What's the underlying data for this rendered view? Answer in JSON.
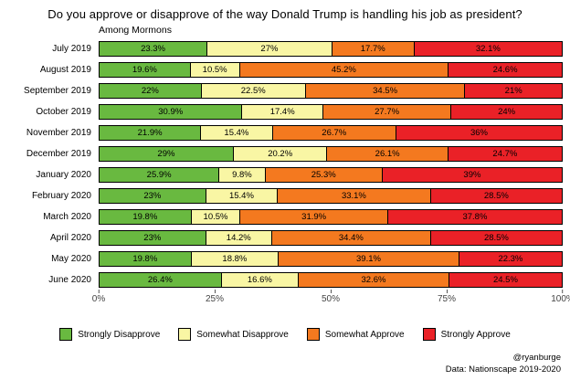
{
  "chart_data": {
    "type": "bar",
    "orientation": "horizontal-stacked",
    "title": "Do you approve or disapprove of the way Donald Trump is handling his job as president?",
    "subtitle": "Among Mormons",
    "categories": [
      "July 2019",
      "August 2019",
      "September 2019",
      "October 2019",
      "November 2019",
      "December 2019",
      "January 2020",
      "February 2020",
      "March 2020",
      "April 2020",
      "May 2020",
      "June 2020"
    ],
    "series": [
      {
        "name": "Strongly Disapprove",
        "color": "#69b940",
        "values": [
          23.3,
          19.6,
          22,
          30.9,
          21.9,
          29,
          25.9,
          23,
          19.8,
          23,
          19.8,
          26.4
        ],
        "labels": [
          "23.3%",
          "19.6%",
          "22%",
          "30.9%",
          "21.9%",
          "29%",
          "25.9%",
          "23%",
          "19.8%",
          "23%",
          "19.8%",
          "26.4%"
        ]
      },
      {
        "name": "Somewhat Disapprove",
        "color": "#f9f6a4",
        "values": [
          27,
          10.5,
          22.5,
          17.4,
          15.4,
          20.2,
          9.8,
          15.4,
          10.5,
          14.2,
          18.8,
          16.6
        ],
        "labels": [
          "27%",
          "10.5%",
          "22.5%",
          "17.4%",
          "15.4%",
          "20.2%",
          "9.8%",
          "15.4%",
          "10.5%",
          "14.2%",
          "18.8%",
          "16.6%"
        ]
      },
      {
        "name": "Somewhat Approve",
        "color": "#f4791f",
        "values": [
          17.7,
          45.2,
          34.5,
          27.7,
          26.7,
          26.1,
          25.3,
          33.1,
          31.9,
          34.4,
          39.1,
          32.6
        ],
        "labels": [
          "17.7%",
          "45.2%",
          "34.5%",
          "27.7%",
          "26.7%",
          "26.1%",
          "25.3%",
          "33.1%",
          "31.9%",
          "34.4%",
          "39.1%",
          "32.6%"
        ]
      },
      {
        "name": "Strongly Approve",
        "color": "#ea2127",
        "values": [
          32.1,
          24.6,
          21,
          24,
          36,
          24.7,
          39,
          28.5,
          37.8,
          28.5,
          22.3,
          24.5
        ],
        "labels": [
          "32.1%",
          "24.6%",
          "21%",
          "24%",
          "36%",
          "24.7%",
          "39%",
          "28.5%",
          "37.8%",
          "28.5%",
          "22.3%",
          "24.5%"
        ]
      }
    ],
    "x_axis": {
      "ticks": [
        "0%",
        "25%",
        "50%",
        "75%",
        "100%"
      ],
      "range": [
        0,
        100
      ]
    },
    "legend_position": "bottom",
    "grid": false
  },
  "credits": {
    "handle": "@ryanburge",
    "source": "Data: Nationscape 2019-2020"
  }
}
